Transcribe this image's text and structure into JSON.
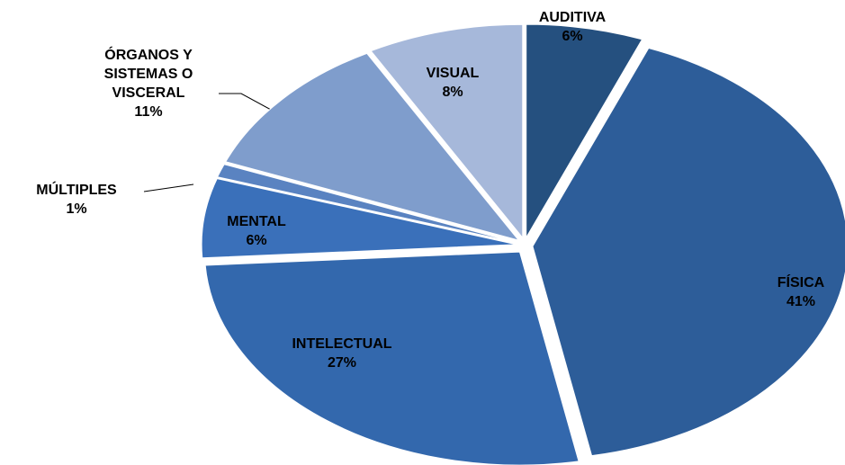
{
  "chart_data": {
    "type": "pie",
    "categories": [
      "AUDITIVA",
      "FÍSICA",
      "INTELECTUAL",
      "MENTAL",
      "MÚLTIPLES",
      "ÓRGANOS Y SISTEMAS O VISCERAL",
      "VISUAL"
    ],
    "values": [
      6,
      41,
      27,
      6,
      1,
      11,
      8
    ],
    "value_labels": [
      "6%",
      "41%",
      "27%",
      "6%",
      "1%",
      "11%",
      "8%"
    ],
    "colors": [
      "#25507f",
      "#2d5d99",
      "#3368ad",
      "#3a70ba",
      "#5a83c1",
      "#7f9dcc",
      "#a6b8da"
    ]
  }
}
